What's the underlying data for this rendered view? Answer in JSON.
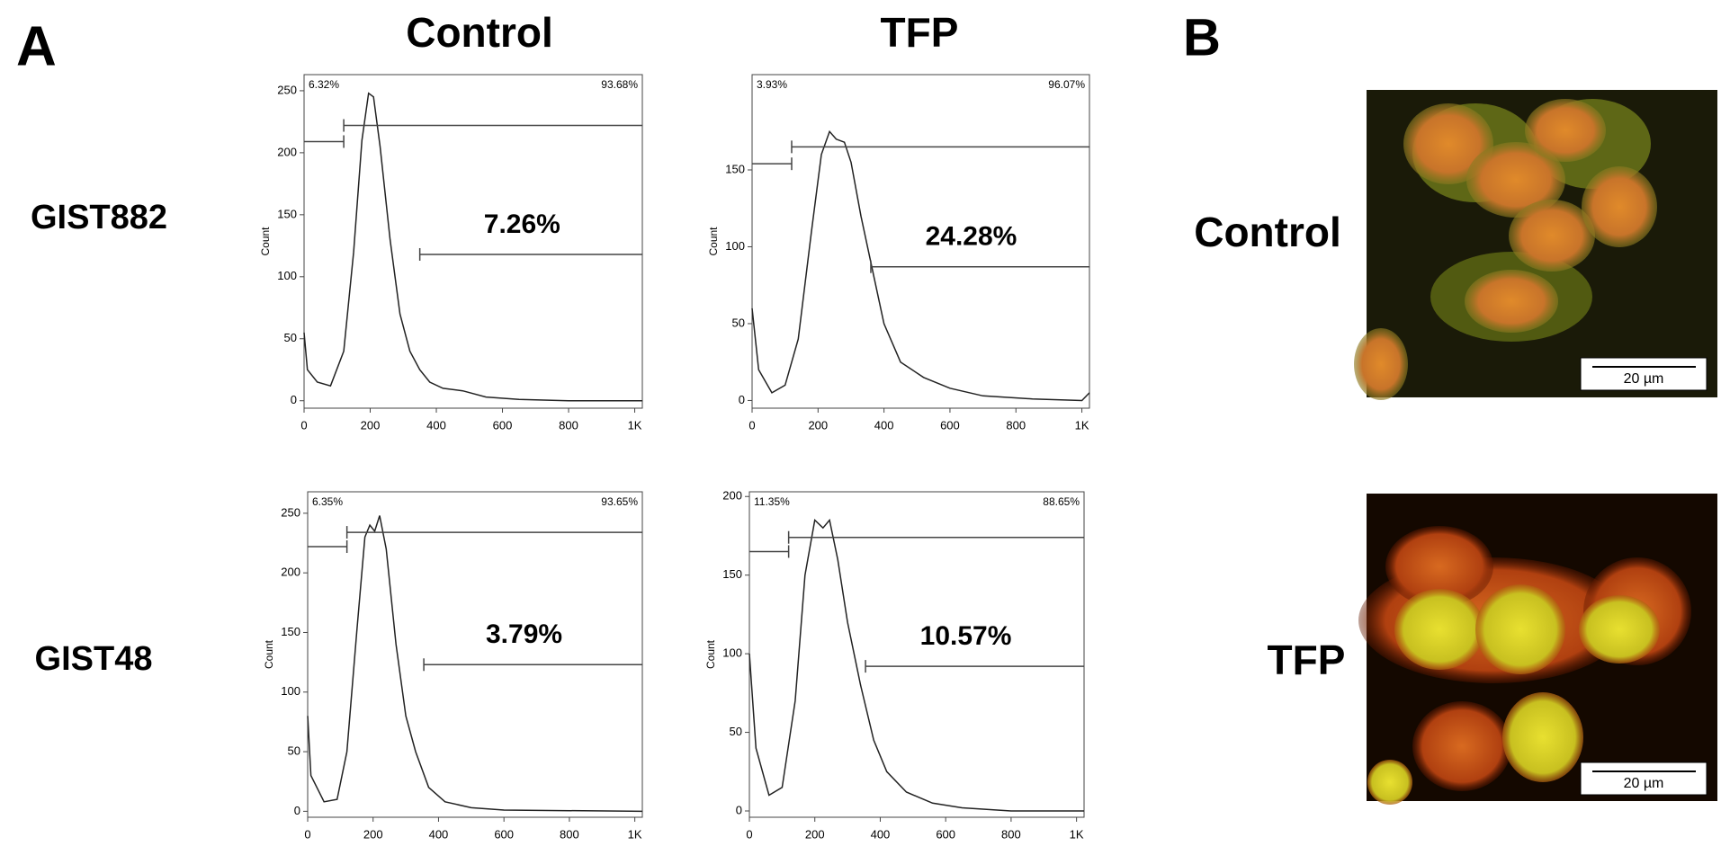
{
  "panels": {
    "a": "A",
    "b": "B"
  },
  "columns": [
    "Control",
    "TFP"
  ],
  "rows": [
    "GIST882",
    "GIST48"
  ],
  "micrographs": [
    {
      "label": "Control",
      "scale_bar": "20 µm"
    },
    {
      "label": "TFP",
      "scale_bar": "20 µm"
    }
  ],
  "chart_data": [
    {
      "type": "line",
      "y_label": "Count",
      "color": "#222",
      "x": [
        0,
        10,
        40,
        80,
        120,
        150,
        175,
        195,
        210,
        230,
        260,
        290,
        320,
        350,
        380,
        420,
        480,
        550,
        650,
        800,
        1023
      ],
      "values": [
        55,
        25,
        15,
        12,
        40,
        120,
        210,
        248,
        245,
        205,
        130,
        70,
        40,
        25,
        15,
        10,
        8,
        3,
        1,
        0,
        0
      ],
      "xlim": [
        0,
        1023
      ],
      "ylim": [
        -6,
        263
      ],
      "xticks": [
        0,
        200,
        400,
        600,
        800,
        {
          "value": 1000,
          "label": "1K"
        }
      ],
      "yticks": [
        0,
        50,
        100,
        150,
        200,
        250
      ],
      "gates": [
        {
          "label": "6.32%",
          "range": [
            0,
            120
          ],
          "y": 209
        },
        {
          "label": "93.68%",
          "range": [
            120,
            1023
          ],
          "y": 222
        }
      ],
      "marker": {
        "label": "7.26%",
        "range": [
          350,
          1023
        ],
        "y": 118
      }
    },
    {
      "type": "line",
      "y_label": "Count",
      "color": "#222",
      "x": [
        0,
        20,
        60,
        100,
        140,
        180,
        210,
        235,
        255,
        280,
        300,
        330,
        370,
        400,
        450,
        520,
        600,
        700,
        850,
        1000,
        1023
      ],
      "values": [
        60,
        20,
        5,
        10,
        40,
        110,
        160,
        175,
        170,
        168,
        155,
        120,
        80,
        50,
        25,
        15,
        8,
        3,
        1,
        0,
        5
      ],
      "xlim": [
        0,
        1023
      ],
      "ylim": [
        -5,
        212
      ],
      "xticks": [
        0,
        200,
        400,
        600,
        800,
        {
          "value": 1000,
          "label": "1K"
        }
      ],
      "yticks": [
        0,
        50,
        100,
        150
      ],
      "gates": [
        {
          "label": "3.93%",
          "range": [
            0,
            120
          ],
          "y": 154
        },
        {
          "label": "96.07%",
          "range": [
            120,
            1023
          ],
          "y": 165
        }
      ],
      "marker": {
        "label": "24.28%",
        "range": [
          360,
          1023
        ],
        "y": 87
      }
    },
    {
      "type": "line",
      "y_label": "Count",
      "color": "#222",
      "x": [
        0,
        10,
        50,
        90,
        120,
        150,
        175,
        190,
        205,
        220,
        240,
        270,
        300,
        330,
        370,
        420,
        500,
        600,
        1023
      ],
      "values": [
        80,
        30,
        8,
        10,
        50,
        150,
        230,
        240,
        235,
        248,
        220,
        140,
        80,
        50,
        20,
        8,
        3,
        1,
        0
      ],
      "xlim": [
        0,
        1023
      ],
      "ylim": [
        -5,
        268
      ],
      "xticks": [
        0,
        200,
        400,
        600,
        800,
        {
          "value": 1000,
          "label": "1K"
        }
      ],
      "yticks": [
        0,
        50,
        100,
        150,
        200,
        250
      ],
      "gates": [
        {
          "label": "6.35%",
          "range": [
            0,
            120
          ],
          "y": 222
        },
        {
          "label": "93.65%",
          "range": [
            120,
            1023
          ],
          "y": 234
        }
      ],
      "marker": {
        "label": "3.79%",
        "range": [
          355,
          1023
        ],
        "y": 123
      }
    },
    {
      "type": "line",
      "y_label": "Count",
      "color": "#222",
      "x": [
        0,
        20,
        60,
        100,
        140,
        170,
        200,
        225,
        245,
        270,
        300,
        340,
        380,
        420,
        480,
        560,
        650,
        800,
        1023
      ],
      "values": [
        100,
        40,
        10,
        15,
        70,
        150,
        185,
        180,
        185,
        160,
        120,
        80,
        45,
        25,
        12,
        5,
        2,
        0,
        0
      ],
      "xlim": [
        0,
        1023
      ],
      "ylim": [
        -4,
        203
      ],
      "xticks": [
        0,
        200,
        400,
        600,
        800,
        {
          "value": 1000,
          "label": "1K"
        }
      ],
      "yticks": [
        0,
        50,
        100,
        150,
        200
      ],
      "gates": [
        {
          "label": "11.35%",
          "range": [
            0,
            120
          ],
          "y": 165
        },
        {
          "label": "88.65%",
          "range": [
            120,
            1023
          ],
          "y": 174
        }
      ],
      "marker": {
        "label": "10.57%",
        "range": [
          355,
          1023
        ],
        "y": 92
      }
    }
  ]
}
